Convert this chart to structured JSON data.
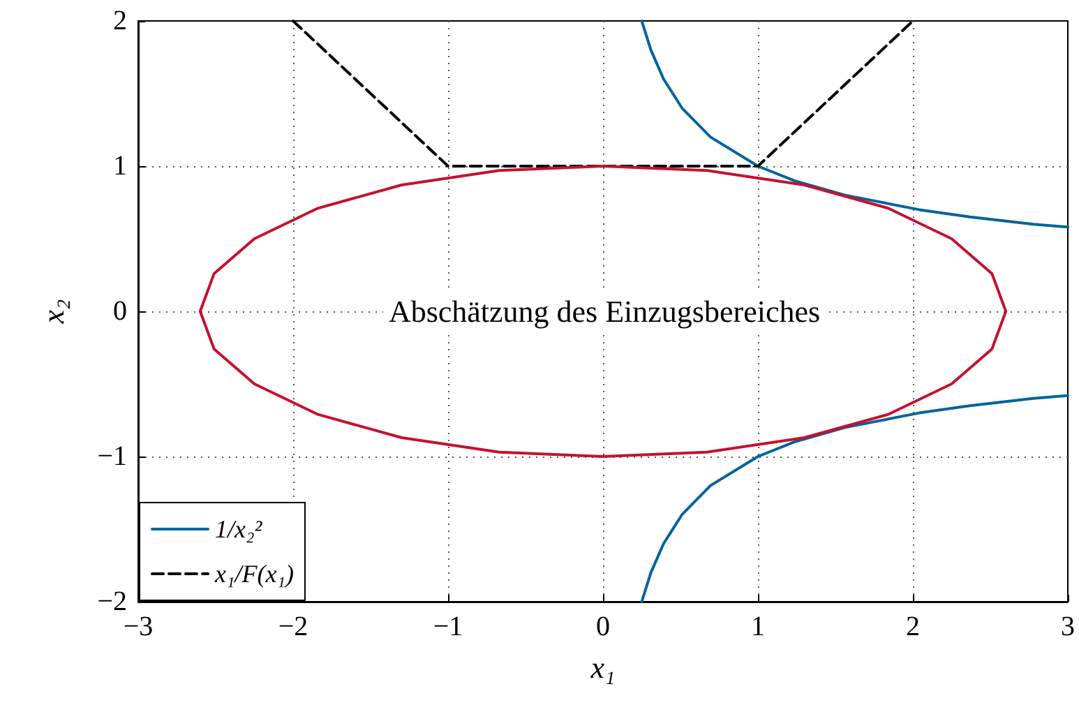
{
  "chart_data": {
    "type": "line",
    "xlabel": "x₁",
    "ylabel": "x₂",
    "xlim": [
      -3,
      3
    ],
    "ylim": [
      -2,
      2
    ],
    "xticks": [
      -3,
      -2,
      -1,
      0,
      1,
      2,
      3
    ],
    "yticks": [
      -2,
      -1,
      0,
      1,
      2
    ],
    "grid": true,
    "legend": "bottom left",
    "annotations": [
      "Abschätzung des Einzugsbereiches"
    ],
    "series": [
      {
        "name": "1/x₂²",
        "color": "#00649b",
        "line_style": "solid",
        "x": [
          0.25,
          0.309,
          0.391,
          0.51,
          0.694,
          1,
          1.235,
          1.563,
          2.041,
          2.367,
          2.778,
          3,
          null,
          3,
          2.778,
          2.367,
          2.041,
          1.563,
          1.235,
          1,
          0.694,
          0.51,
          0.391,
          0.309,
          0.25
        ],
        "values": [
          2,
          1.8,
          1.6,
          1.4,
          1.2,
          1,
          0.9,
          0.8,
          0.7,
          0.65,
          0.6,
          0.58,
          null,
          -0.58,
          -0.6,
          -0.65,
          -0.7,
          -0.8,
          -0.9,
          -1,
          -1.2,
          -1.4,
          -1.6,
          -1.8,
          -2
        ]
      },
      {
        "name": "x₁/F(x₁)",
        "color": "#000000",
        "line_style": "dashed",
        "x": [
          -2,
          -1,
          1,
          2
        ],
        "values": [
          2,
          1,
          1,
          2
        ]
      },
      {
        "color": "#c4122f",
        "line_style": "solid",
        "x": [
          -2.6,
          -2.51,
          -2.25,
          -1.84,
          -1.3,
          -0.67,
          0,
          0.67,
          1.3,
          1.84,
          2.25,
          2.51,
          2.6,
          null,
          -2.6,
          -2.51,
          -2.25,
          -1.84,
          -1.3,
          -0.67,
          0,
          0.67,
          1.3,
          1.84,
          2.25,
          2.51,
          2.6
        ],
        "values": [
          0,
          0.26,
          0.5,
          0.71,
          0.87,
          0.97,
          1,
          0.97,
          0.87,
          0.71,
          0.5,
          0.26,
          0,
          null,
          0,
          -0.26,
          -0.5,
          -0.71,
          -0.87,
          -0.97,
          -1,
          -0.97,
          -0.87,
          -0.71,
          -0.5,
          -0.26,
          0
        ]
      }
    ]
  }
}
